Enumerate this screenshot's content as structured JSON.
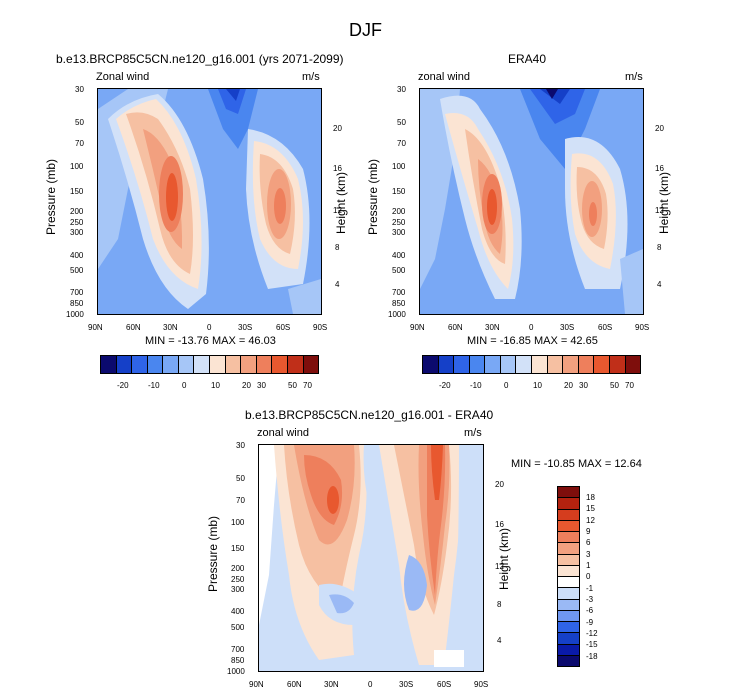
{
  "title": "DJF",
  "colors": {
    "model_scale": [
      "#0b0a6e",
      "#1540c8",
      "#2f64e8",
      "#4a86ef",
      "#79a8f5",
      "#a6c6f7",
      "#d2e1f8",
      "#fbe4d3",
      "#f6c0a2",
      "#f2a07f",
      "#ee7f5c",
      "#e8582f",
      "#c02f19",
      "#7e0e0c"
    ],
    "diff_scale": [
      "#0b0a6e",
      "#0a1aa8",
      "#1540c8",
      "#2f64e8",
      "#6f97f1",
      "#9ab9f5",
      "#cddff9",
      "#ffffff",
      "#fbe4d3",
      "#f6c0a2",
      "#f2a07f",
      "#ee7f5c",
      "#e8582f",
      "#d53d1e",
      "#b3220f",
      "#7e0e0c"
    ]
  },
  "chart_data": [
    {
      "type": "heatmap",
      "panel": "model",
      "title": "b.e13.BRCP85C5CN.ne120_g16.001 (yrs 2071-2099)",
      "left_label": "Zonal wind",
      "right_label": "m/s",
      "ylabel": "Pressure (mb)",
      "ylabel_right": "Height (km)",
      "x_ticks": [
        "90N",
        "60N",
        "30N",
        "0",
        "30S",
        "60S",
        "90S"
      ],
      "y_ticks": [
        "30",
        "50",
        "70",
        "100",
        "150",
        "200",
        "250",
        "300",
        "400",
        "500",
        "700",
        "850",
        "1000"
      ],
      "y_ticks_right": [
        "20",
        "16",
        "12",
        "8",
        "4"
      ],
      "stats": "MIN = -13.76  MAX = 46.03",
      "colorbar_labels": [
        "-20",
        "-10",
        "0",
        "10",
        "20",
        "30",
        "50",
        "70"
      ]
    },
    {
      "type": "heatmap",
      "panel": "obs",
      "title": "ERA40",
      "left_label": "zonal wind",
      "right_label": "m/s",
      "ylabel": "Pressure (mb)",
      "ylabel_right": "Height (km)",
      "x_ticks": [
        "90N",
        "60N",
        "30N",
        "0",
        "30S",
        "60S",
        "90S"
      ],
      "y_ticks": [
        "30",
        "50",
        "70",
        "100",
        "150",
        "200",
        "250",
        "300",
        "400",
        "500",
        "700",
        "850",
        "1000"
      ],
      "y_ticks_right": [
        "20",
        "16",
        "12",
        "8",
        "4"
      ],
      "stats": "MIN = -16.85  MAX = 42.65",
      "colorbar_labels": [
        "-20",
        "-10",
        "0",
        "10",
        "20",
        "30",
        "50",
        "70"
      ]
    },
    {
      "type": "heatmap",
      "panel": "diff",
      "title": "b.e13.BRCP85C5CN.ne120_g16.001 - ERA40",
      "left_label": "zonal wind",
      "right_label": "m/s",
      "ylabel": "Pressure (mb)",
      "ylabel_right": "Height (km)",
      "x_ticks": [
        "90N",
        "60N",
        "30N",
        "0",
        "30S",
        "60S",
        "90S"
      ],
      "y_ticks": [
        "30",
        "50",
        "70",
        "100",
        "150",
        "200",
        "250",
        "300",
        "400",
        "500",
        "700",
        "850",
        "1000"
      ],
      "y_ticks_right": [
        "20",
        "16",
        "12",
        "8",
        "4"
      ],
      "stats": "MIN = -10.85  MAX = 12.64",
      "colorbar_labels": [
        "18",
        "15",
        "12",
        "9",
        "6",
        "3",
        "1",
        "0",
        "-1",
        "-3",
        "-6",
        "-9",
        "-12",
        "-15",
        "-18"
      ]
    }
  ]
}
